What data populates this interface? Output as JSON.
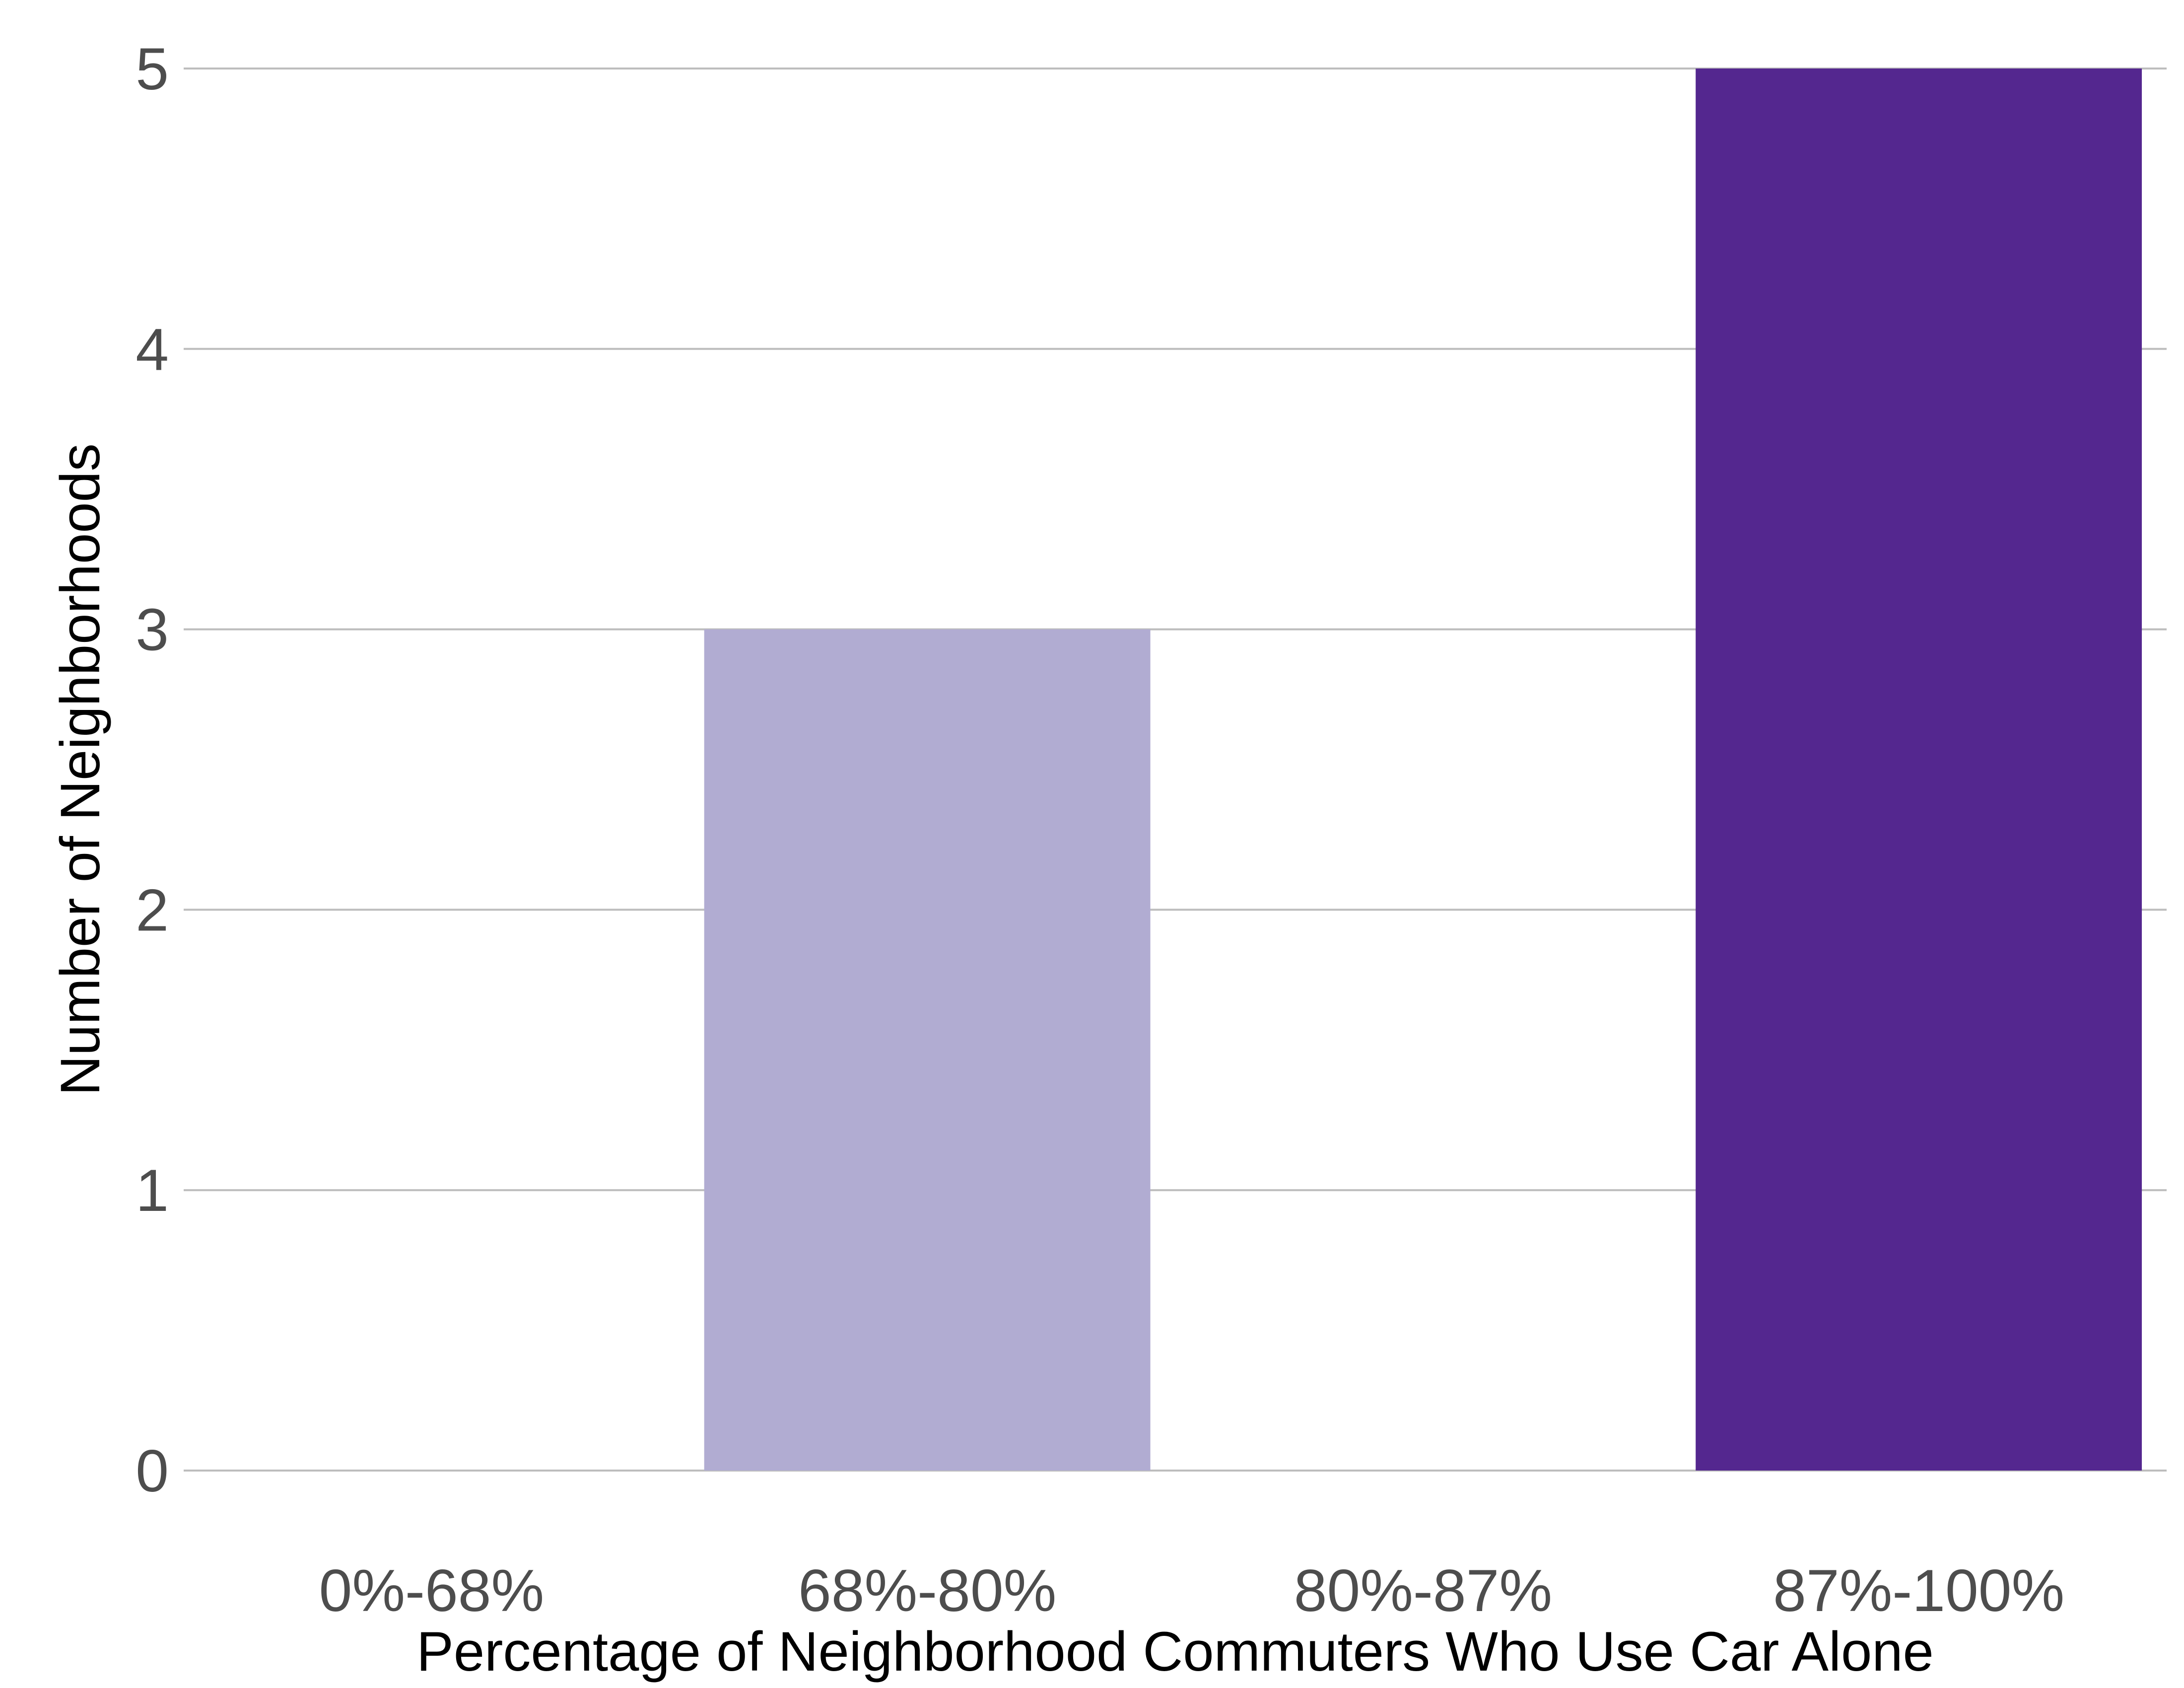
{
  "chart_data": {
    "type": "bar",
    "categories": [
      "0%-68%",
      "68%-80%",
      "80%-87%",
      "87%-100%"
    ],
    "values": [
      0,
      3,
      0,
      5
    ],
    "bar_colors": [
      "#f2f0f7",
      "#b1acd2",
      "#807dba",
      "#54278f"
    ],
    "title": "",
    "xlabel": "Percentage of Neighborhood Commuters Who Use Car Alone",
    "ylabel": "Number of Neighborhoods",
    "ylim": [
      0,
      5
    ],
    "yticks": [
      "0",
      "1",
      "2",
      "3",
      "4",
      "5"
    ],
    "grid": "horizontal",
    "legend": "none"
  },
  "colors": {
    "gridline": "#bdbdbd",
    "tick_text": "#4d4d4d",
    "axis_title": "#000000",
    "background": "#ffffff"
  }
}
